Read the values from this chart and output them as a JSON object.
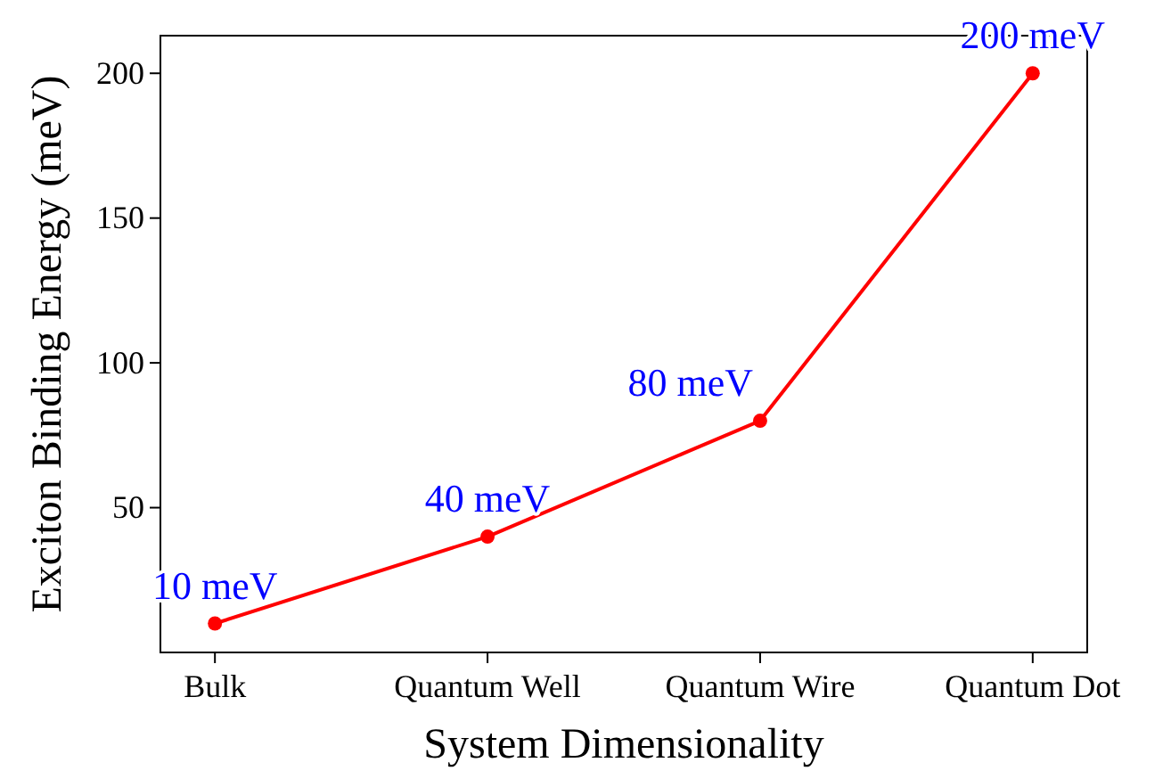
{
  "chart_data": {
    "type": "line",
    "xlabel": "System Dimensionality",
    "ylabel": "Exciton Binding Energy (meV)",
    "categories": [
      "Bulk",
      "Quantum Well",
      "Quantum Wire",
      "Quantum Dot"
    ],
    "series": [
      {
        "color": "#ff0000",
        "values": [
          10,
          40,
          80,
          200
        ],
        "value_labels": [
          "10 meV",
          "40 meV",
          "80 meV",
          "200 meV"
        ]
      }
    ],
    "ylim": [
      0,
      213
    ],
    "yticks": [
      50,
      100,
      150,
      200
    ],
    "marker": "circle",
    "grid": false
  }
}
